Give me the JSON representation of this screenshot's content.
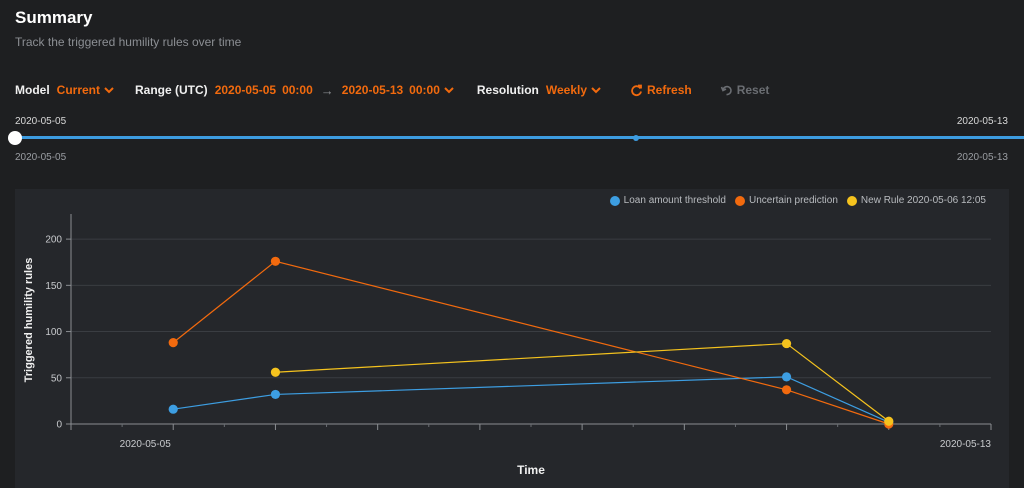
{
  "header": {
    "title": "Summary",
    "subtitle": "Track the triggered humility rules over time"
  },
  "controls": {
    "model_label": "Model",
    "model_value": "Current",
    "range_label": "Range (UTC)",
    "range_start_date": "2020-05-05",
    "range_start_time": "00:00",
    "range_arrow": "→",
    "range_end_date": "2020-05-13",
    "range_end_time": "00:00",
    "resolution_label": "Resolution",
    "resolution_value": "Weekly",
    "refresh_label": "Refresh",
    "reset_label": "Reset"
  },
  "slider": {
    "start_label_top": "2020-05-05",
    "end_label_top": "2020-05-13",
    "start_label_bottom": "2020-05-05",
    "end_label_bottom": "2020-05-13"
  },
  "colors": {
    "accent": "#f26a0e",
    "slider_track": "#3d9ce0"
  },
  "chart_data": {
    "type": "line",
    "title": "",
    "xlabel": "Time",
    "ylabel": "Triggered humility rules",
    "ylim": [
      0,
      225
    ],
    "yticks": [
      0,
      50,
      100,
      150,
      200
    ],
    "xlim": [
      "2020-05-04",
      "2020-05-13"
    ],
    "xtick_labels": [
      "2020-05-05",
      "2020-05-13"
    ],
    "grid": true,
    "legend_position": "top-right",
    "series": [
      {
        "name": "Loan amount threshold",
        "color": "#3d9ee2",
        "x": [
          "2020-05-05",
          "2020-05-06",
          "2020-05-11",
          "2020-05-12"
        ],
        "y": [
          16,
          32,
          51,
          2
        ]
      },
      {
        "name": "Uncertain prediction",
        "color": "#f26a0e",
        "x": [
          "2020-05-05",
          "2020-05-06",
          "2020-05-11",
          "2020-05-12"
        ],
        "y": [
          88,
          176,
          37,
          0
        ]
      },
      {
        "name": "New Rule 2020-05-06 12:05",
        "color": "#f5c31e",
        "x": [
          "2020-05-06",
          "2020-05-11",
          "2020-05-12"
        ],
        "y": [
          56,
          87,
          3
        ]
      }
    ]
  }
}
